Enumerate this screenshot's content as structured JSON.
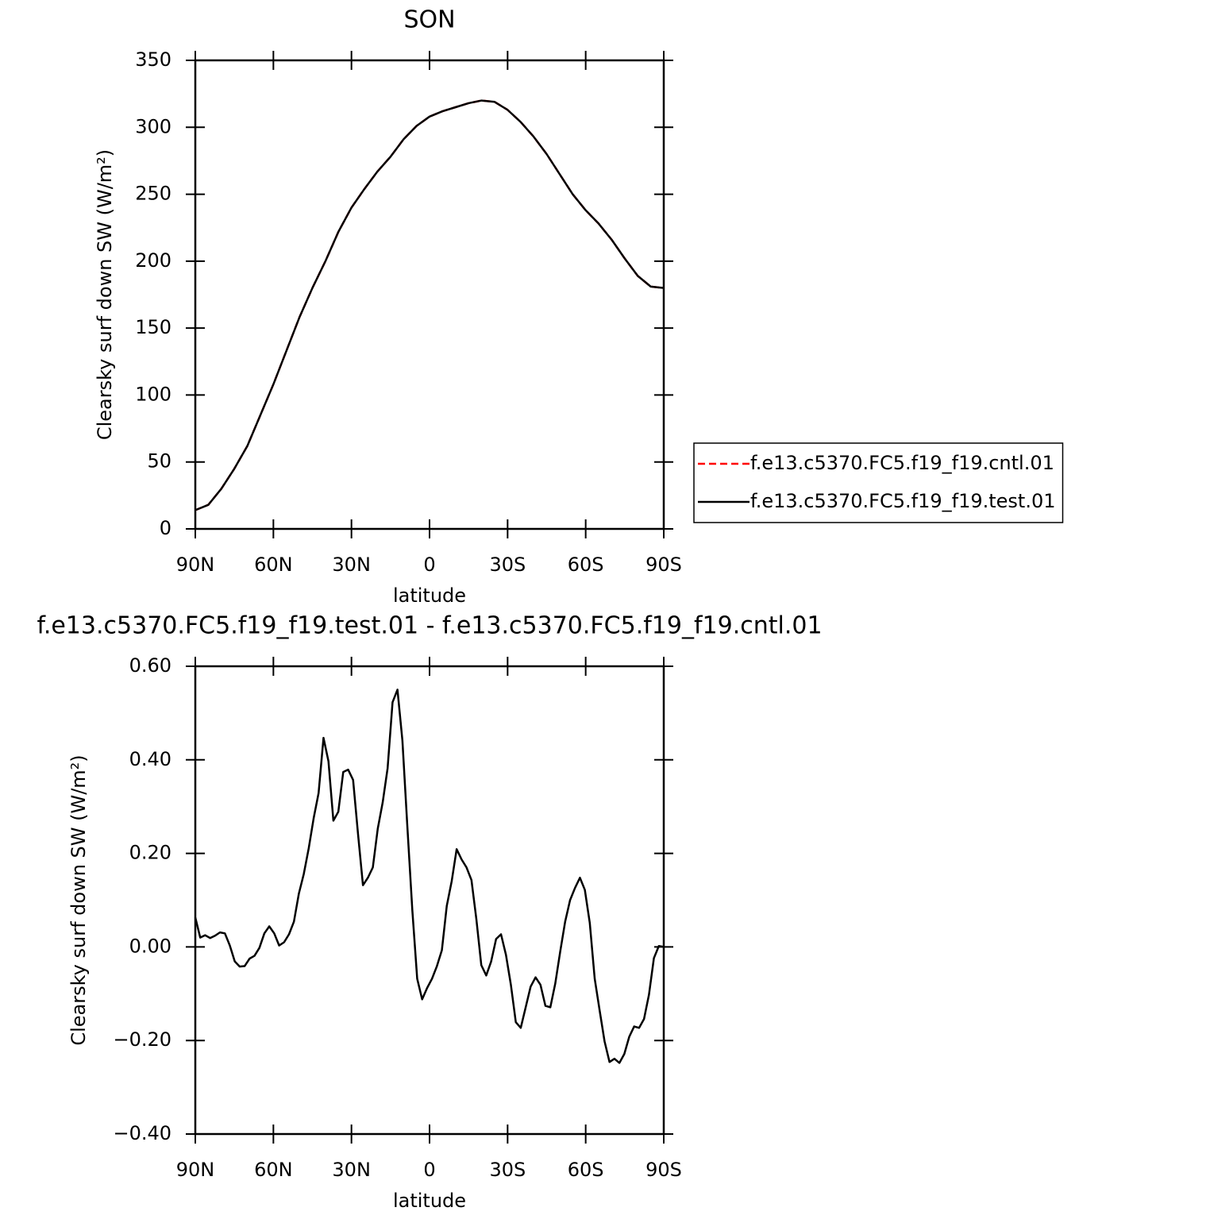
{
  "chart_data": [
    {
      "type": "line",
      "title": "SON",
      "xlabel": "latitude",
      "ylabel": "Clearsky surf down SW (W/m²)",
      "x": [
        90,
        85,
        80,
        75,
        70,
        65,
        60,
        55,
        50,
        45,
        40,
        35,
        30,
        25,
        20,
        15,
        10,
        5,
        0,
        -5,
        -10,
        -15,
        -20,
        -25,
        -30,
        -35,
        -40,
        -45,
        -50,
        -55,
        -60,
        -65,
        -70,
        -75,
        -80,
        -85,
        -90
      ],
      "series": [
        {
          "name": "f.e13.c5370.FC5.f19_f19.cntl.01",
          "color": "#ff0000",
          "dashed": true,
          "values": [
            14,
            18,
            30,
            45,
            62,
            85,
            108,
            133,
            158,
            180,
            200,
            222,
            240,
            254,
            267,
            278,
            291,
            301,
            308,
            312,
            315,
            318,
            320,
            319,
            313,
            304,
            293,
            280,
            265,
            250,
            238,
            228,
            216,
            202,
            189,
            181,
            180
          ]
        },
        {
          "name": "f.e13.c5370.FC5.f19_f19.test.01",
          "color": "#000000",
          "dashed": false,
          "values": [
            14,
            18,
            30,
            45,
            62,
            85,
            108,
            133,
            158,
            180,
            200,
            222,
            240,
            254,
            267,
            278,
            291,
            301,
            308,
            312,
            315,
            318,
            320,
            319,
            313,
            304,
            293,
            280,
            265,
            250,
            238,
            228,
            216,
            202,
            189,
            181,
            180
          ]
        }
      ],
      "xlim": [
        90,
        -90
      ],
      "xticks": [
        {
          "value": 90,
          "label": "90N"
        },
        {
          "value": 60,
          "label": "60N"
        },
        {
          "value": 30,
          "label": "30N"
        },
        0,
        {
          "value": -30,
          "label": "30S"
        },
        {
          "value": -60,
          "label": "60S"
        },
        {
          "value": -90,
          "label": "90S"
        }
      ],
      "ylim": [
        0,
        350
      ],
      "yticks": [
        0,
        50,
        100,
        150,
        200,
        250,
        300,
        350
      ],
      "legend": "right"
    },
    {
      "type": "line",
      "title": "f.e13.c5370.FC5.f19_f19.test.01 - f.e13.c5370.FC5.f19_f19.cntl.01",
      "xlabel": "latitude",
      "ylabel": "Clearsky surf down SW (W/m²)",
      "x": [
        90,
        88.11,
        86.21,
        84.32,
        82.42,
        80.53,
        78.63,
        76.74,
        74.84,
        72.95,
        71.05,
        69.16,
        67.26,
        65.37,
        63.47,
        61.58,
        59.68,
        57.79,
        55.89,
        54.0,
        52.11,
        50.21,
        48.32,
        46.42,
        44.53,
        42.63,
        40.74,
        38.84,
        36.95,
        35.05,
        33.16,
        31.26,
        29.37,
        27.47,
        25.58,
        23.68,
        21.79,
        19.89,
        18.0,
        16.11,
        14.21,
        12.32,
        10.42,
        8.53,
        6.63,
        4.74,
        2.84,
        0.95,
        -0.95,
        -2.84,
        -4.74,
        -6.63,
        -8.53,
        -10.42,
        -12.32,
        -14.21,
        -16.11,
        -18.0,
        -19.89,
        -21.79,
        -23.68,
        -25.58,
        -27.47,
        -29.37,
        -31.26,
        -33.16,
        -35.05,
        -36.95,
        -38.84,
        -40.74,
        -42.63,
        -44.53,
        -46.42,
        -48.32,
        -50.21,
        -52.11,
        -54.0,
        -55.89,
        -57.79,
        -59.68,
        -61.58,
        -63.47,
        -65.37,
        -67.26,
        -69.16,
        -71.05,
        -72.95,
        -74.84,
        -76.74,
        -78.63,
        -80.53,
        -82.42,
        -84.32,
        -86.21,
        -88.11,
        -90
      ],
      "series": [
        {
          "color": "#000000",
          "dashed": false,
          "values": [
            0.063,
            0.02,
            0.025,
            0.019,
            0.024,
            0.031,
            0.029,
            0.003,
            -0.031,
            -0.042,
            -0.041,
            -0.025,
            -0.019,
            -0.002,
            0.029,
            0.044,
            0.029,
            0.003,
            0.01,
            0.027,
            0.054,
            0.114,
            0.156,
            0.211,
            0.275,
            0.329,
            0.447,
            0.397,
            0.27,
            0.289,
            0.374,
            0.379,
            0.357,
            0.241,
            0.132,
            0.148,
            0.17,
            0.253,
            0.309,
            0.382,
            0.523,
            0.55,
            0.441,
            0.258,
            0.08,
            -0.068,
            -0.112,
            -0.088,
            -0.068,
            -0.041,
            -0.007,
            0.088,
            0.141,
            0.209,
            0.187,
            0.17,
            0.143,
            0.059,
            -0.039,
            -0.061,
            -0.031,
            0.017,
            0.027,
            -0.017,
            -0.081,
            -0.161,
            -0.173,
            -0.129,
            -0.085,
            -0.065,
            -0.081,
            -0.126,
            -0.129,
            -0.078,
            -0.01,
            0.054,
            0.1,
            0.126,
            0.148,
            0.122,
            0.051,
            -0.068,
            -0.136,
            -0.202,
            -0.246,
            -0.239,
            -0.248,
            -0.229,
            -0.192,
            -0.17,
            -0.173,
            -0.154,
            -0.102,
            -0.024,
            0.002,
            0.0
          ]
        }
      ],
      "xlim": [
        90,
        -90
      ],
      "xticks": [
        {
          "value": 90,
          "label": "90N"
        },
        {
          "value": 60,
          "label": "60N"
        },
        {
          "value": 30,
          "label": "30N"
        },
        0,
        {
          "value": -30,
          "label": "30S"
        },
        {
          "value": -60,
          "label": "60S"
        },
        {
          "value": -90,
          "label": "90S"
        }
      ],
      "ylim": [
        -0.4,
        0.6
      ],
      "yticks": [
        {
          "value": -0.4,
          "label": "−0.40"
        },
        {
          "value": -0.2,
          "label": "−0.20"
        },
        {
          "value": 0,
          "label": "0.00"
        },
        {
          "value": 0.2,
          "label": "0.20"
        },
        {
          "value": 0.4,
          "label": "0.40"
        },
        {
          "value": 0.6,
          "label": "0.60"
        }
      ]
    }
  ]
}
